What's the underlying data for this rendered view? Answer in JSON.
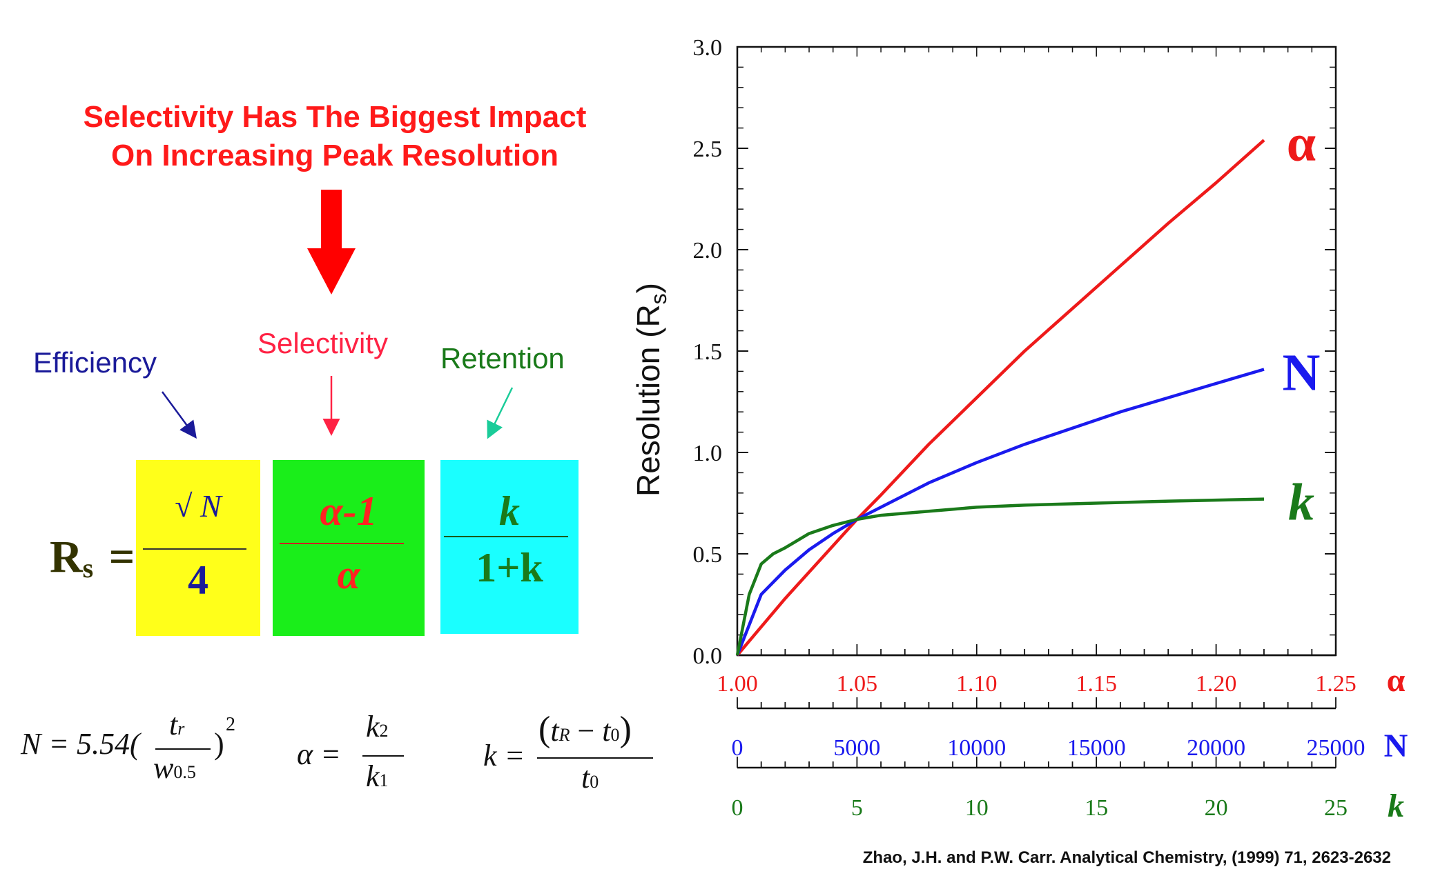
{
  "headline": {
    "line1": "Selectivity Has The Biggest Impact",
    "line2": "On Increasing Peak Resolution"
  },
  "factor_labels": {
    "efficiency": "Efficiency",
    "selectivity": "Selectivity",
    "retention": "Retention"
  },
  "equation": {
    "lhs_main": "R",
    "lhs_sub": "s",
    "equals": "=",
    "term1_num": "√ N",
    "term1_den": "4",
    "term2_num": "α-1",
    "term2_den": "α",
    "term3_num": "k",
    "term3_den": "1+k"
  },
  "sub_formulas": {
    "n_prefix": "N = 5.54(",
    "n_num": "t",
    "n_num_sub": "r",
    "n_den": "w",
    "n_den_sub": "0.5",
    "n_suffix": ")",
    "n_exp": "2",
    "alpha_lhs": "α =",
    "alpha_num": "k",
    "alpha_num_sub": "2",
    "alpha_den": "k",
    "alpha_den_sub": "1",
    "k_lhs": "k =",
    "k_num_open": "(",
    "k_num_a": "t",
    "k_num_a_sub": "R",
    "k_num_minus": " − ",
    "k_num_b": "t",
    "k_num_b_sub": "0",
    "k_num_close": ")",
    "k_den": "t",
    "k_den_sub": "0"
  },
  "colors": {
    "headline": "#ff1a1a",
    "efficiency": "#1a1a99",
    "selectivity": "#ff2244",
    "retention": "#1a7a1a",
    "box1": "#ffff1a",
    "box2": "#1aee1a",
    "box3": "#1affff",
    "alpha": "#ee1a1a",
    "N": "#1a1aee",
    "k": "#1a7a1a"
  },
  "chart_data": {
    "type": "line",
    "ylabel": "Resolution (R",
    "ylabel_sub": "s",
    "ylabel_close": ")",
    "ylim": [
      0,
      3.0
    ],
    "yticks": [
      "0.0",
      "0.5",
      "1.0",
      "1.5",
      "2.0",
      "2.5",
      "3.0"
    ],
    "x_axes": [
      {
        "name": "α",
        "ticks": [
          "1.00",
          "1.05",
          "1.10",
          "1.15",
          "1.20",
          "1.25"
        ],
        "range": [
          1.0,
          1.25
        ]
      },
      {
        "name": "N",
        "ticks": [
          "0",
          "5000",
          "10000",
          "15000",
          "20000",
          "25000"
        ],
        "range": [
          0,
          25000
        ]
      },
      {
        "name": "k",
        "ticks": [
          "0",
          "5",
          "10",
          "15",
          "20",
          "25"
        ],
        "range": [
          0,
          25
        ]
      }
    ],
    "series": [
      {
        "name": "α",
        "axis": 0,
        "x": [
          1.0,
          1.01,
          1.02,
          1.03,
          1.04,
          1.05,
          1.06,
          1.08,
          1.1,
          1.12,
          1.14,
          1.16,
          1.18,
          1.2,
          1.22
        ],
        "y": [
          0.0,
          0.14,
          0.28,
          0.41,
          0.54,
          0.67,
          0.79,
          1.04,
          1.27,
          1.5,
          1.71,
          1.92,
          2.13,
          2.33,
          2.54
        ]
      },
      {
        "name": "N",
        "axis": 1,
        "x": [
          0,
          1000,
          2000,
          3000,
          4000,
          5000,
          6000,
          8000,
          10000,
          12000,
          14000,
          16000,
          18000,
          20000,
          22000
        ],
        "y": [
          0.0,
          0.3,
          0.42,
          0.52,
          0.6,
          0.67,
          0.73,
          0.85,
          0.95,
          1.04,
          1.12,
          1.2,
          1.27,
          1.34,
          1.41
        ]
      },
      {
        "name": "k",
        "axis": 2,
        "x": [
          0,
          0.5,
          1,
          1.5,
          2,
          3,
          4,
          5,
          6,
          8,
          10,
          12,
          15,
          18,
          22
        ],
        "y": [
          0.0,
          0.3,
          0.45,
          0.5,
          0.53,
          0.6,
          0.64,
          0.67,
          0.69,
          0.71,
          0.73,
          0.74,
          0.75,
          0.76,
          0.77
        ]
      }
    ]
  },
  "citation": "Zhao, J.H. and P.W. Carr. Analytical Chemistry, (1999) 71, 2623-2632"
}
